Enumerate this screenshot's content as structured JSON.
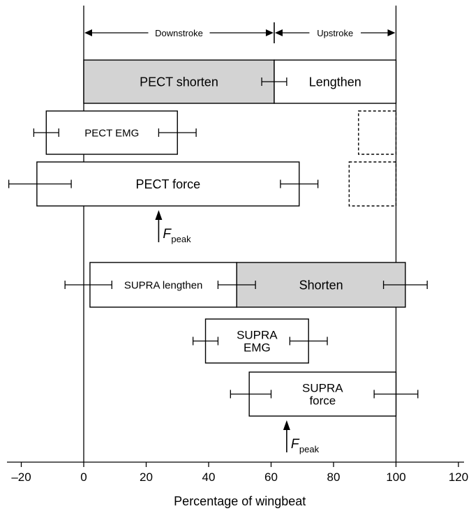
{
  "chart_data": {
    "type": "bar",
    "orientation": "horizontal-interval",
    "xlabel": "Percentage of wingbeat",
    "xlim": [
      -20,
      120
    ],
    "xticks": [
      -20,
      0,
      20,
      40,
      60,
      80,
      100,
      120
    ],
    "xtick_labels": [
      "–20",
      "0",
      "20",
      "40",
      "60",
      "80",
      "100",
      "120"
    ],
    "phases": {
      "downstroke": {
        "label": "Downstroke",
        "start": 0,
        "end": 61
      },
      "upstroke": {
        "label": "Upstroke",
        "start": 61,
        "end": 100
      }
    },
    "bars": [
      {
        "id": "pect-shorten",
        "lines": [
          "PECT shorten"
        ],
        "start": 0,
        "end": 61,
        "fill": "#d3d3d3",
        "row": 0
      },
      {
        "id": "pect-lengthen",
        "lines": [
          "Lengthen"
        ],
        "start": 61,
        "end": 100,
        "fill": "#ffffff",
        "row": 0
      },
      {
        "id": "pect-emg",
        "lines": [
          "PECT EMG"
        ],
        "start": -12,
        "end": 30,
        "fill": "#ffffff",
        "row": 1
      },
      {
        "id": "pect-force",
        "lines": [
          "PECT force"
        ],
        "start": -15,
        "end": 69,
        "fill": "#ffffff",
        "row": 2
      },
      {
        "id": "supra-lengthen",
        "lines": [
          "SUPRA lengthen"
        ],
        "start": 2,
        "end": 49,
        "fill": "#ffffff",
        "row": 3
      },
      {
        "id": "supra-shorten",
        "lines": [
          "Shorten"
        ],
        "start": 49,
        "end": 103,
        "fill": "#d3d3d3",
        "row": 3
      },
      {
        "id": "supra-emg",
        "lines": [
          "SUPRA",
          "EMG"
        ],
        "start": 39,
        "end": 72,
        "fill": "#ffffff",
        "row": 4
      },
      {
        "id": "supra-force",
        "lines": [
          "SUPRA",
          "force"
        ],
        "start": 53,
        "end": 100,
        "fill": "#ffffff",
        "row": 5
      }
    ],
    "dashed_boxes": [
      {
        "id": "pect-emg-second",
        "start": 88,
        "end": 100,
        "row": 1
      },
      {
        "id": "pect-force-second",
        "start": 85,
        "end": 100,
        "row": 2
      }
    ],
    "error_bars": [
      {
        "row": 0,
        "center": 61,
        "low": 57,
        "high": 65
      },
      {
        "row": 1,
        "center": -12,
        "low": -16,
        "high": -8
      },
      {
        "row": 1,
        "center": 30,
        "low": 24,
        "high": 36
      },
      {
        "row": 2,
        "center": -15,
        "low": -24,
        "high": -4
      },
      {
        "row": 2,
        "center": 69,
        "low": 63,
        "high": 75
      },
      {
        "row": 3,
        "center": 2,
        "low": -6,
        "high": 9
      },
      {
        "row": 3,
        "center": 49,
        "low": 43,
        "high": 55
      },
      {
        "row": 3,
        "center": 103,
        "low": 96,
        "high": 110
      },
      {
        "row": 4,
        "center": 39,
        "low": 35,
        "high": 43
      },
      {
        "row": 4,
        "center": 72,
        "low": 66,
        "high": 78
      },
      {
        "row": 5,
        "center": 53,
        "low": 47,
        "high": 60
      },
      {
        "row": 5,
        "center": 100,
        "low": 93,
        "high": 107
      }
    ],
    "annotations": [
      {
        "id": "fpeak-pect",
        "x": 24,
        "below_row": 2,
        "symbol": "F",
        "subscript": "peak"
      },
      {
        "id": "fpeak-supra",
        "x": 65,
        "below_row": 5,
        "symbol": "F",
        "subscript": "peak"
      }
    ]
  }
}
